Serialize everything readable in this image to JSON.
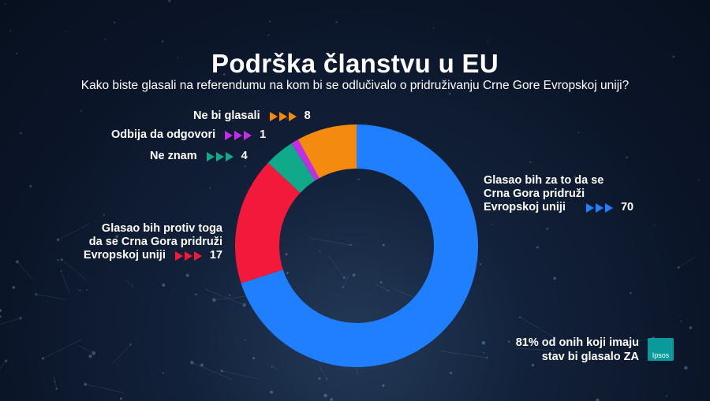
{
  "chart_data": {
    "type": "pie",
    "title": "Podrška članstvu u EU",
    "subtitle": "Kako biste glasali na referendumu na kom bi se odlučivalo o pridruživanju Crne Gore Evropskoj uniji?",
    "donut": true,
    "slices": [
      {
        "label": "Glasao bih za to da se Crna Gora pridruži Evropskoj uniji",
        "lines": [
          "Glasao bih za to da se",
          "Crna Gora pridruži",
          "Evropskoj uniji"
        ],
        "value": 70,
        "color": "#1f7fff"
      },
      {
        "label": "Glasao bih protiv toga da se Crna Gora pridruži Evropskoj uniji",
        "lines": [
          "Glasao bih protiv toga",
          "da se Crna Gora pridruži",
          "Evropskoj uniji"
        ],
        "value": 17,
        "color": "#f2193a"
      },
      {
        "label": "Ne znam",
        "lines": [
          "Ne znam"
        ],
        "value": 4,
        "color": "#10a98a"
      },
      {
        "label": "Odbija da odgovori",
        "lines": [
          "Odbija da odgovori"
        ],
        "value": 1,
        "color": "#c22de8"
      },
      {
        "label": "Ne bi glasali",
        "lines": [
          "Ne bi glasali"
        ],
        "value": 8,
        "color": "#f58a10"
      }
    ]
  },
  "footnote": {
    "line1": "81% od onih koji imaju",
    "line2": "stav bi glasalo ZA"
  },
  "logo": {
    "text": "Ipsos",
    "icon": "ipsos-logo"
  }
}
